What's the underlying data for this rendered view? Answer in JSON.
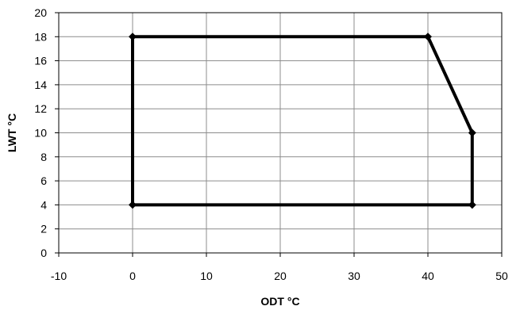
{
  "chart_data": {
    "type": "line",
    "title": "",
    "xlabel": "ODT °C",
    "ylabel": "LWT °C",
    "xlim": [
      -10,
      50
    ],
    "ylim": [
      0,
      20
    ],
    "x_ticks": [
      -10,
      0,
      10,
      20,
      30,
      40,
      50
    ],
    "y_ticks": [
      0,
      2,
      4,
      6,
      8,
      10,
      12,
      14,
      16,
      18,
      20
    ],
    "grid": true,
    "legend": "none",
    "series": [
      {
        "color": "#000000",
        "marker": "diamond",
        "closed": true,
        "points": [
          {
            "x": 0,
            "y": 4
          },
          {
            "x": 0,
            "y": 18
          },
          {
            "x": 40,
            "y": 18
          },
          {
            "x": 46,
            "y": 10
          },
          {
            "x": 46,
            "y": 4
          }
        ]
      }
    ]
  }
}
